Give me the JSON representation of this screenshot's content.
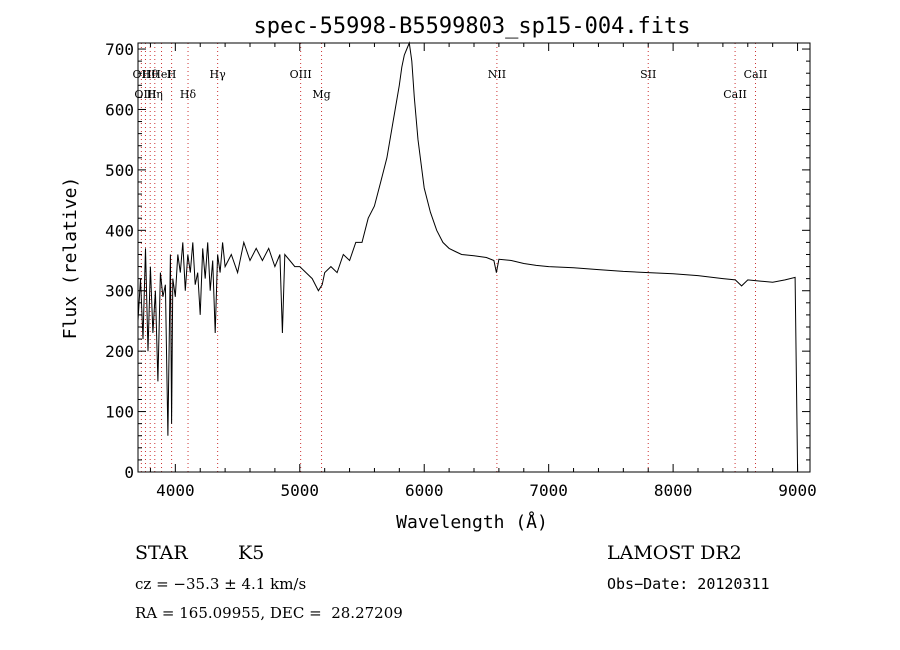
{
  "chart_data": {
    "type": "line",
    "title": "spec-55998-B5599803_sp15-004.fits",
    "xlabel": "Wavelength (Å)",
    "ylabel": "Flux (relative)",
    "xlim": [
      3700,
      9100
    ],
    "ylim": [
      0,
      710
    ],
    "xticks": [
      4000,
      5000,
      6000,
      7000,
      8000,
      9000
    ],
    "yticks": [
      0,
      100,
      200,
      300,
      400,
      500,
      600,
      700
    ],
    "grid": false,
    "series": [
      {
        "x": [
          3700,
          3720,
          3740,
          3760,
          3780,
          3800,
          3820,
          3840,
          3860,
          3880,
          3900,
          3920,
          3940,
          3960,
          3970,
          3980,
          4000,
          4020,
          4040,
          4060,
          4080,
          4100,
          4120,
          4140,
          4160,
          4180,
          4200,
          4220,
          4240,
          4260,
          4280,
          4300,
          4320,
          4340,
          4360,
          4380,
          4400,
          4450,
          4500,
          4550,
          4600,
          4650,
          4700,
          4750,
          4800,
          4840,
          4860,
          4880,
          4920,
          4960,
          5000,
          5050,
          5100,
          5150,
          5180,
          5200,
          5250,
          5300,
          5350,
          5400,
          5450,
          5500,
          5550,
          5600,
          5650,
          5700,
          5750,
          5800,
          5820,
          5840,
          5860,
          5880,
          5900,
          5920,
          5950,
          6000,
          6050,
          6100,
          6150,
          6200,
          6250,
          6300,
          6400,
          6500,
          6560,
          6580,
          6600,
          6700,
          6800,
          6900,
          7000,
          7200,
          7400,
          7600,
          7800,
          8000,
          8200,
          8400,
          8500,
          8550,
          8600,
          8700,
          8800,
          8900,
          8980,
          9000
        ],
        "y": [
          250,
          320,
          220,
          370,
          200,
          340,
          230,
          300,
          150,
          330,
          290,
          310,
          60,
          360,
          80,
          320,
          290,
          360,
          330,
          380,
          300,
          360,
          330,
          380,
          310,
          330,
          260,
          370,
          320,
          380,
          300,
          350,
          230,
          360,
          330,
          380,
          340,
          360,
          330,
          380,
          350,
          370,
          350,
          370,
          340,
          360,
          230,
          360,
          350,
          340,
          340,
          330,
          320,
          300,
          310,
          330,
          340,
          330,
          360,
          350,
          380,
          380,
          420,
          440,
          480,
          520,
          580,
          640,
          670,
          690,
          700,
          710,
          680,
          620,
          550,
          470,
          430,
          400,
          380,
          370,
          365,
          360,
          358,
          355,
          350,
          330,
          352,
          350,
          345,
          342,
          340,
          338,
          335,
          332,
          330,
          328,
          325,
          320,
          318,
          308,
          318,
          316,
          314,
          318,
          322,
          0
        ]
      }
    ],
    "line_annotations_top": [
      {
        "label": "Hθ",
        "x": 3798
      },
      {
        "label": "H",
        "x": 3970
      },
      {
        "label": "OII",
        "x": 3727
      },
      {
        "label": "HeI",
        "x": 3889
      },
      {
        "label": "Hγ",
        "x": 4340
      },
      {
        "label": "OIII",
        "x": 5007
      },
      {
        "label": "NII",
        "x": 6584
      },
      {
        "label": "SII",
        "x": 7800
      },
      {
        "label": "CaII",
        "x": 8662
      }
    ],
    "line_annotations_bottom": [
      {
        "label": "OIII",
        "x": 3760
      },
      {
        "label": "Hη",
        "x": 3835
      },
      {
        "label": "Hδ",
        "x": 4102
      },
      {
        "label": "Mg",
        "x": 5175
      },
      {
        "label": "CaII",
        "x": 8498
      }
    ],
    "marker_color": "#cc3333"
  },
  "info": {
    "class_label": "STAR",
    "subclass_label": "K5",
    "survey": "LAMOST DR2",
    "cz": "cz = −35.3 ± 4.1 km/s",
    "obs_date": "Obs−Date: 20120311",
    "coords": "RA = 165.09955, DEC =  28.27209"
  }
}
